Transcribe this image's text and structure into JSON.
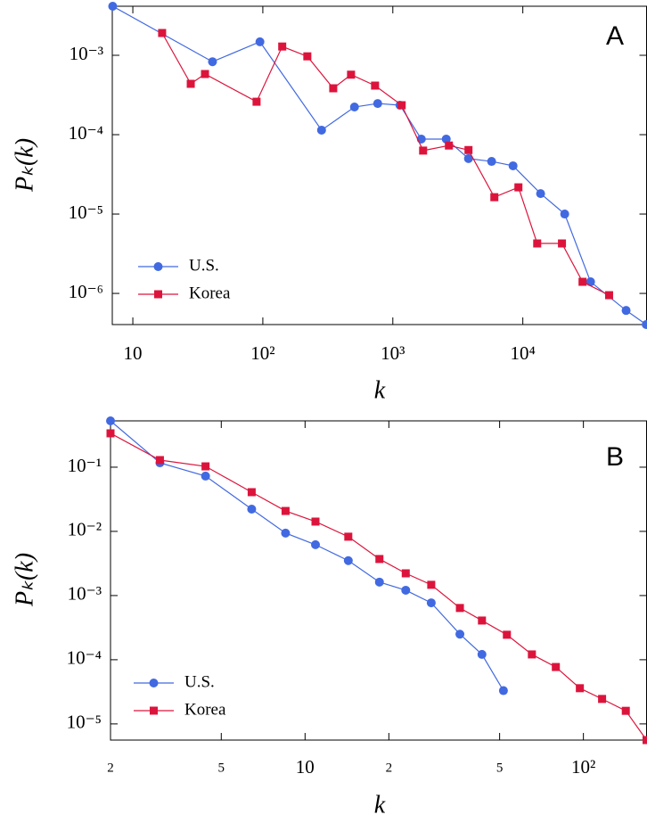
{
  "chart_data": [
    {
      "type": "line",
      "panel_label": "A",
      "xlabel": "k",
      "ylabel": "Pₖ(k)",
      "log_x": true,
      "log_y": true,
      "xlim": [
        6.95,
        89500
      ],
      "ylim": [
        4.05e-07,
        0.00415
      ],
      "xticks": [
        10,
        {
          "value": 100,
          "label": "10²"
        },
        {
          "value": 1000,
          "label": "10³"
        },
        {
          "value": 10000,
          "label": "10⁴"
        }
      ],
      "yticks": [
        {
          "value": 0.001,
          "label": "10⁻³"
        },
        {
          "value": 0.0001,
          "label": "10⁻⁴"
        },
        {
          "value": 1e-05,
          "label": "10⁻⁵"
        },
        {
          "value": 1e-06,
          "label": "10⁻⁶"
        }
      ],
      "series": [
        {
          "name": "U.S.",
          "color": "#4169e1",
          "marker": "circle",
          "x": [
            7,
            41,
            95,
            283,
            507,
            765,
            1135,
            1656,
            2576,
            3820,
            5754,
            8410,
            13700,
            21000,
            33200,
            62300,
            89000
          ],
          "values": [
            0.00415,
            0.00083,
            0.00148,
            0.000114,
            0.000223,
            0.000247,
            0.000235,
            8.8e-05,
            8.8e-05,
            5e-05,
            4.6e-05,
            4.05e-05,
            1.81e-05,
            1e-05,
            1.4e-06,
            6.1e-07,
            4.05e-07
          ]
        },
        {
          "name": "Korea",
          "color": "#dc143c",
          "marker": "square",
          "x": [
            16.8,
            27.9,
            35.9,
            89.5,
            141,
            220,
            348,
            477,
            730,
            1170,
            1710,
            2700,
            3820,
            6040,
            9250,
            12900,
            20000,
            28800,
            46100
          ],
          "values": [
            0.00191,
            0.000437,
            0.000581,
            0.00026,
            0.00129,
            0.00097,
            0.000384,
            0.00057,
            0.000415,
            0.000235,
            6.3e-05,
            7.3e-05,
            6.4e-05,
            1.63e-05,
            2.17e-05,
            4.26e-06,
            4.26e-06,
            1.4e-06,
            9.5e-07
          ]
        }
      ]
    },
    {
      "type": "line",
      "panel_label": "B",
      "xlabel": "k",
      "ylabel": "Pₖ(k)",
      "log_x": true,
      "log_y": true,
      "xlim": [
        2,
        168.6
      ],
      "ylim": [
        5.6e-06,
        0.527
      ],
      "xticks": [
        2,
        5,
        10,
        {
          "value": 20,
          "label": "2"
        },
        {
          "value": 50,
          "label": "5"
        },
        {
          "value": 100,
          "label": "10²"
        }
      ],
      "yticks": [
        {
          "value": 0.1,
          "label": "10⁻¹"
        },
        {
          "value": 0.01,
          "label": "10⁻²"
        },
        {
          "value": 0.001,
          "label": "10⁻³"
        },
        {
          "value": 0.0001,
          "label": "10⁻⁴"
        },
        {
          "value": 1e-05,
          "label": "10⁻⁵"
        }
      ],
      "series": [
        {
          "name": "U.S.",
          "color": "#4169e1",
          "marker": "circle",
          "x": [
            2,
            3.01,
            4.39,
            6.43,
            8.51,
            10.9,
            14.3,
            18.5,
            23,
            28.4,
            36,
            43.2,
            51.6
          ],
          "values": [
            0.527,
            0.117,
            0.0727,
            0.0222,
            0.0094,
            0.0062,
            0.0035,
            0.00162,
            0.00121,
            0.00077,
            0.00025,
            0.000121,
            3.3e-05
          ]
        },
        {
          "name": "Korea",
          "color": "#dc143c",
          "marker": "square",
          "x": [
            2,
            3.01,
            4.39,
            6.43,
            8.51,
            10.9,
            14.3,
            18.5,
            23,
            28.4,
            36,
            43.2,
            53.1,
            65.3,
            79.6,
            97.1,
            116.7,
            142,
            168.6
          ],
          "values": [
            0.337,
            0.129,
            0.103,
            0.0408,
            0.0208,
            0.0142,
            0.00826,
            0.00371,
            0.00222,
            0.00147,
            0.00064,
            0.000408,
            0.000245,
            0.000121,
            7.7e-05,
            3.6e-05,
            2.45e-05,
            1.6e-05,
            5.6e-06
          ]
        }
      ]
    }
  ]
}
